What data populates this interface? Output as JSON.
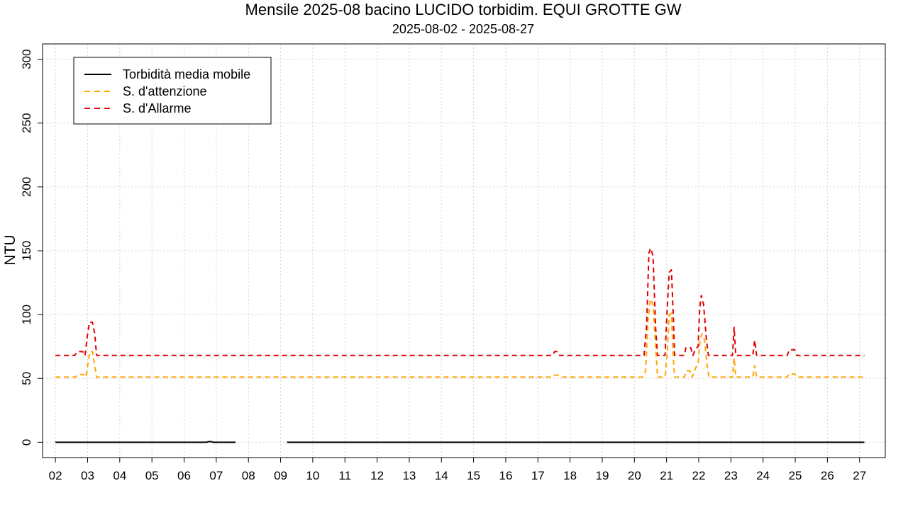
{
  "chart_data": {
    "type": "line",
    "title": "Mensile 2025-08 bacino LUCIDO torbidim. EQUI GROTTE GW",
    "subtitle": "2025-08-02 - 2025-08-27",
    "xlabel": "",
    "ylabel": "NTU",
    "xlim": [
      1.6,
      27.8
    ],
    "ylim": [
      -12,
      312
    ],
    "x_ticks": [
      "02",
      "03",
      "04",
      "05",
      "06",
      "07",
      "08",
      "09",
      "10",
      "11",
      "12",
      "13",
      "14",
      "15",
      "16",
      "17",
      "18",
      "19",
      "20",
      "21",
      "22",
      "23",
      "24",
      "25",
      "26",
      "27"
    ],
    "y_ticks": [
      0,
      50,
      100,
      150,
      200,
      250,
      300
    ],
    "grid": true,
    "legend": {
      "position": "top-left",
      "entries": [
        {
          "label": "Torbidità media mobile",
          "color": "#000000",
          "style": "solid"
        },
        {
          "label": "S. d'attenzione",
          "color": "#FFA500",
          "style": "dashed"
        },
        {
          "label": "S. d'Allarme",
          "color": "#E00000",
          "style": "dashed"
        }
      ]
    },
    "series": [
      {
        "name": "Torbidità media mobile",
        "color": "#000000",
        "style": "solid",
        "segments": [
          [
            [
              2.0,
              0
            ],
            [
              6.7,
              0
            ],
            [
              6.75,
              0.5
            ],
            [
              6.85,
              0.5
            ],
            [
              6.9,
              0
            ],
            [
              7.6,
              0
            ]
          ],
          [
            [
              9.2,
              0
            ],
            [
              27.15,
              0
            ]
          ]
        ]
      },
      {
        "name": "S. d'attenzione",
        "color": "#FFA500",
        "style": "dashed",
        "points": [
          [
            2.0,
            51
          ],
          [
            2.62,
            51
          ],
          [
            2.7,
            53
          ],
          [
            2.88,
            53
          ],
          [
            2.95,
            51
          ],
          [
            3.0,
            60
          ],
          [
            3.07,
            71
          ],
          [
            3.15,
            71
          ],
          [
            3.22,
            60
          ],
          [
            3.28,
            51
          ],
          [
            17.4,
            51
          ],
          [
            17.5,
            52.5
          ],
          [
            17.65,
            52.5
          ],
          [
            17.75,
            51
          ],
          [
            20.25,
            51
          ],
          [
            20.35,
            56
          ],
          [
            20.42,
            95
          ],
          [
            20.5,
            112
          ],
          [
            20.58,
            108
          ],
          [
            20.66,
            75
          ],
          [
            20.72,
            51
          ],
          [
            20.95,
            51
          ],
          [
            21.02,
            70
          ],
          [
            21.08,
            100
          ],
          [
            21.15,
            101
          ],
          [
            21.2,
            70
          ],
          [
            21.25,
            51
          ],
          [
            21.55,
            51
          ],
          [
            21.62,
            56
          ],
          [
            21.72,
            56
          ],
          [
            21.8,
            51
          ],
          [
            21.9,
            58
          ],
          [
            21.98,
            62
          ],
          [
            22.04,
            80
          ],
          [
            22.1,
            85
          ],
          [
            22.18,
            80
          ],
          [
            22.26,
            60
          ],
          [
            22.32,
            51
          ],
          [
            23.05,
            51
          ],
          [
            23.1,
            66
          ],
          [
            23.15,
            51
          ],
          [
            23.68,
            51
          ],
          [
            23.74,
            60
          ],
          [
            23.8,
            51
          ],
          [
            24.75,
            51
          ],
          [
            24.8,
            53.5
          ],
          [
            24.98,
            53.5
          ],
          [
            25.05,
            51
          ],
          [
            27.15,
            51
          ]
        ]
      },
      {
        "name": "S. d'Allarme",
        "color": "#E00000",
        "style": "dashed",
        "points": [
          [
            2.0,
            68
          ],
          [
            2.6,
            68
          ],
          [
            2.68,
            71
          ],
          [
            2.85,
            71
          ],
          [
            2.92,
            68
          ],
          [
            3.0,
            85
          ],
          [
            3.06,
            94
          ],
          [
            3.15,
            94
          ],
          [
            3.22,
            85
          ],
          [
            3.28,
            68
          ],
          [
            17.45,
            68
          ],
          [
            17.52,
            71
          ],
          [
            17.6,
            71
          ],
          [
            17.68,
            68
          ],
          [
            20.3,
            68
          ],
          [
            20.38,
            92
          ],
          [
            20.45,
            148
          ],
          [
            20.5,
            152
          ],
          [
            20.58,
            146
          ],
          [
            20.66,
            90
          ],
          [
            20.72,
            68
          ],
          [
            20.95,
            68
          ],
          [
            21.02,
            105
          ],
          [
            21.08,
            133
          ],
          [
            21.15,
            135
          ],
          [
            21.2,
            105
          ],
          [
            21.25,
            68
          ],
          [
            21.55,
            68
          ],
          [
            21.6,
            74
          ],
          [
            21.75,
            74
          ],
          [
            21.82,
            68
          ],
          [
            21.9,
            73
          ],
          [
            21.98,
            75
          ],
          [
            22.03,
            105
          ],
          [
            22.08,
            115
          ],
          [
            22.15,
            108
          ],
          [
            22.24,
            80
          ],
          [
            22.3,
            68
          ],
          [
            23.05,
            68
          ],
          [
            23.1,
            90
          ],
          [
            23.15,
            68
          ],
          [
            23.68,
            68
          ],
          [
            23.74,
            80
          ],
          [
            23.8,
            68
          ],
          [
            24.75,
            68
          ],
          [
            24.82,
            72.5
          ],
          [
            24.98,
            72.5
          ],
          [
            25.05,
            68
          ],
          [
            27.15,
            68
          ]
        ]
      }
    ]
  }
}
